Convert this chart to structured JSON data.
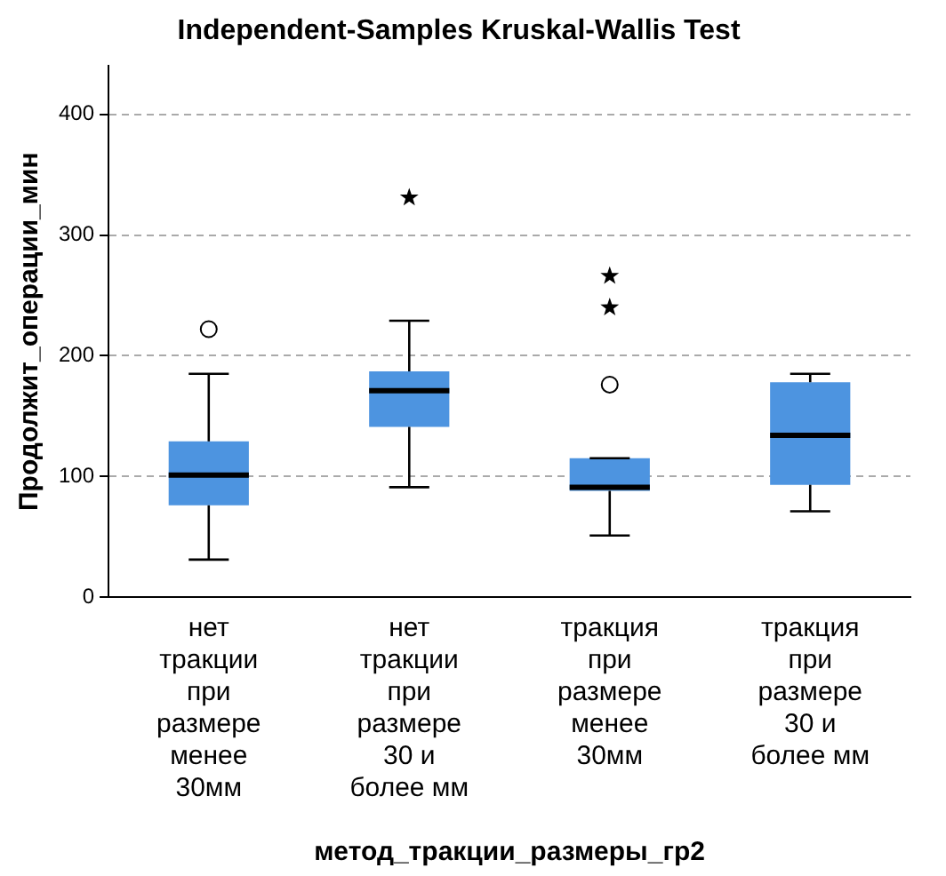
{
  "chart_data": {
    "type": "box",
    "title": "Independent-Samples Kruskal-Wallis Test",
    "xlabel": "метод_тракции_размеры_гр2",
    "ylabel": "Продолжит_операции_мин",
    "categories": [
      "нет\nтракции\nпри\nразмере\nменее\n30мм",
      "нет\nтракции\nпри\nразмере\n30 и\nболее мм",
      "тракция\nпри\nразмере\nменее\n30мм",
      "тракция\nпри\nразмере\n30 и\nболее мм"
    ],
    "boxes": [
      {
        "low": 31,
        "q1": 76,
        "median": 101,
        "q3": 129,
        "high": 185,
        "outliers": [
          222
        ]
      },
      {
        "low": 91,
        "q1": 141,
        "median": 171,
        "q3": 187,
        "high": 229,
        "outliers": [
          331
        ]
      },
      {
        "low": 51,
        "q1": 88,
        "median": 91,
        "q3": 115,
        "high": 115,
        "outliers": [
          176,
          240,
          266
        ]
      },
      {
        "low": 71,
        "q1": 93,
        "median": 134,
        "q3": 178,
        "high": 185
      }
    ],
    "color": "#4d94e0",
    "ylim": [
      0,
      440
    ],
    "yticks": [
      0,
      100,
      200,
      300,
      400
    ],
    "grid": "y"
  }
}
